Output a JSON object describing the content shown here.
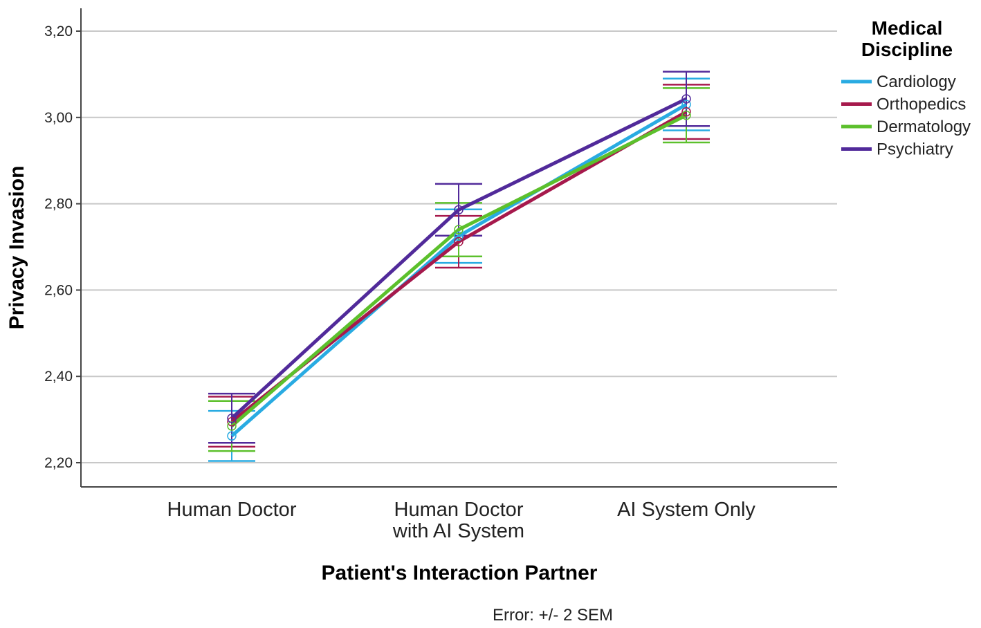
{
  "chart_data": {
    "type": "line",
    "xlabel": "Patient's Interaction Partner",
    "ylabel": "Privacy Invasion",
    "ylim": [
      2.15,
      3.26
    ],
    "yticks": [
      "2,20",
      "2,40",
      "2,60",
      "2,80",
      "3,00",
      "3,20"
    ],
    "ytick_values": [
      2.2,
      2.4,
      2.6,
      2.8,
      3.0,
      3.2
    ],
    "categories": [
      [
        "Human Doctor"
      ],
      [
        "Human Doctor",
        "with AI System"
      ],
      [
        "AI System Only"
      ]
    ],
    "grid": "horizontal",
    "legend": {
      "title": [
        "Medical",
        "Discipline"
      ],
      "placement": "top-right"
    },
    "error_note": "Error: +/- 2 SEM",
    "series": [
      {
        "name": "Cardiology",
        "color": "#29abe2",
        "values": [
          2.262,
          2.725,
          3.03
        ],
        "error": [
          0.058,
          0.062,
          0.06
        ]
      },
      {
        "name": "Orthopedics",
        "color": "#a6194c",
        "values": [
          2.295,
          2.712,
          3.013
        ],
        "error": [
          0.058,
          0.06,
          0.063
        ]
      },
      {
        "name": "Dermatology",
        "color": "#5cc02c",
        "values": [
          2.285,
          2.74,
          3.005
        ],
        "error": [
          0.058,
          0.062,
          0.063
        ]
      },
      {
        "name": "Psychiatry",
        "color": "#512a9a",
        "values": [
          2.303,
          2.786,
          3.043
        ],
        "error": [
          0.057,
          0.06,
          0.063
        ]
      }
    ]
  }
}
